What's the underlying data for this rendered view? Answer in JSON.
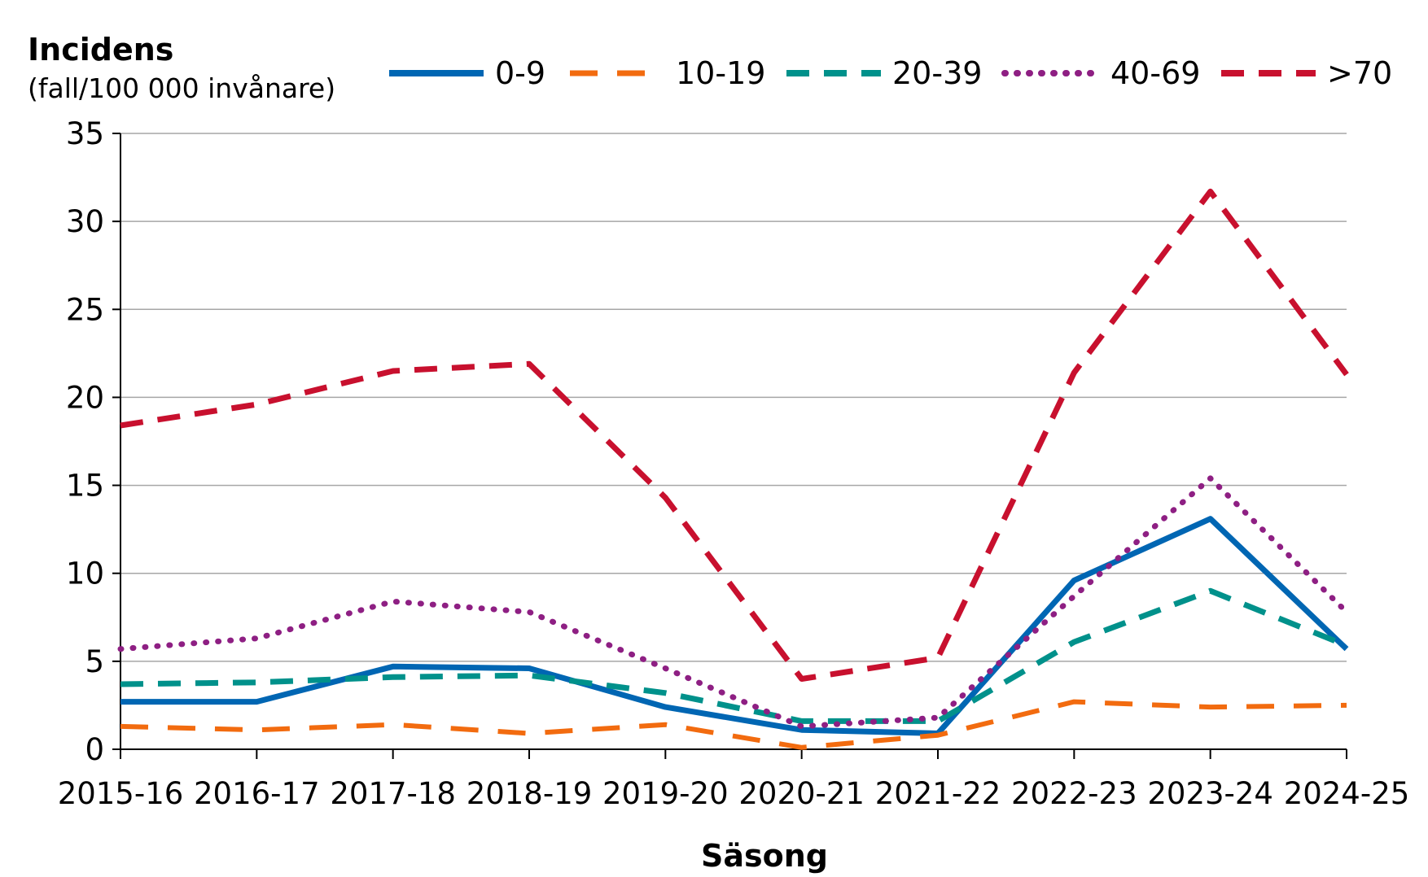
{
  "chart_data": {
    "type": "line",
    "title": "",
    "ylabel": "Incidens",
    "ylabel_unit": "(fall/100 000 invånare)",
    "xlabel": "Säsong",
    "ylim": [
      0,
      35
    ],
    "yticks": [
      0,
      5,
      10,
      15,
      20,
      25,
      30,
      35
    ],
    "grid": true,
    "legend_position": "top",
    "categories": [
      "2015-16",
      "2016-17",
      "2017-18",
      "2018-19",
      "2019-20",
      "2020-21",
      "2021-22",
      "2022-23",
      "2023-24",
      "2024-25"
    ],
    "series": [
      {
        "name": "0-9",
        "color": "#0066b3",
        "dash": "solid",
        "values": [
          2.7,
          2.7,
          4.7,
          4.6,
          2.4,
          1.1,
          0.9,
          9.6,
          13.1,
          5.7
        ]
      },
      {
        "name": "10-19",
        "color": "#f26b0f",
        "dash": "longdash",
        "values": [
          1.3,
          1.1,
          1.4,
          0.9,
          1.4,
          0.1,
          0.8,
          2.7,
          2.4,
          2.5
        ]
      },
      {
        "name": "20-39",
        "color": "#00918b",
        "dash": "dash",
        "values": [
          3.7,
          3.8,
          4.1,
          4.2,
          3.2,
          1.6,
          1.6,
          6.1,
          9.0,
          5.9
        ]
      },
      {
        "name": "40-69",
        "color": "#8e1f83",
        "dash": "dot",
        "values": [
          5.7,
          6.3,
          8.4,
          7.8,
          4.6,
          1.3,
          1.8,
          8.7,
          15.4,
          7.8
        ]
      },
      {
        "name": ">70",
        "color": "#c8102e",
        "dash": "dash",
        "values": [
          18.4,
          19.6,
          21.5,
          21.9,
          14.3,
          4.0,
          5.2,
          21.4,
          31.7,
          21.3
        ]
      }
    ]
  }
}
